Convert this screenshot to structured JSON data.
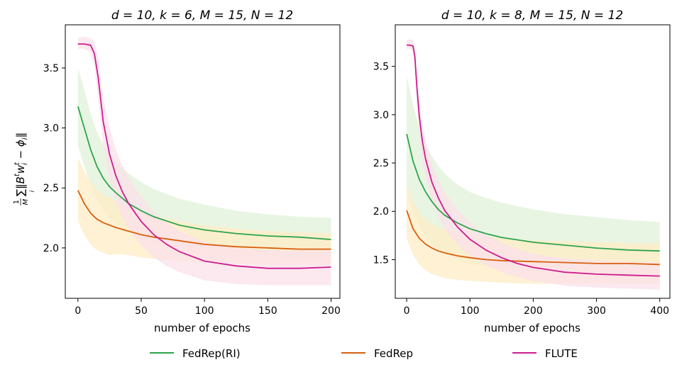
{
  "figure": {
    "ylabel_main": "∑‖B",
    "ylabel_frac_num": "1",
    "ylabel_frac_den": "M",
    "ylabel_sub_i": "i",
    "ylabel_sup_t": "t",
    "ylabel_w": "w",
    "ylabel_tail": " − ϕ",
    "ylabel_close": "‖"
  },
  "legend": {
    "placement": "bottom-center",
    "entries": [
      {
        "label": "FedRep(RI)",
        "color": "#2ca44c"
      },
      {
        "label": "FedRep",
        "color": "#d95f0e"
      },
      {
        "label": "FLUTE",
        "color": "#cc1d8f"
      }
    ]
  },
  "chart_data": [
    {
      "type": "line",
      "title": "d = 10, k = 6, M = 15, N = 12",
      "xlabel": "number of epochs",
      "ylabel": "(1/M) Σ_i ‖B^t w_i^t − ϕ_i‖",
      "xlim": [
        -10,
        207
      ],
      "ylim": [
        1.58,
        3.86
      ],
      "xticks": [
        0,
        50,
        100,
        150,
        200
      ],
      "yticks": [
        2.0,
        2.5,
        3.0,
        3.5
      ],
      "ytick_labels": [
        "2.0",
        "2.5",
        "3.0",
        "3.5"
      ],
      "series": [
        {
          "name": "FedRep(RI)",
          "color": "#2ca44c",
          "band": "#e2f2d9",
          "x": [
            0,
            5,
            10,
            15,
            20,
            25,
            30,
            40,
            50,
            60,
            80,
            100,
            125,
            150,
            175,
            200
          ],
          "y": [
            3.18,
            3.0,
            2.82,
            2.68,
            2.58,
            2.51,
            2.46,
            2.37,
            2.31,
            2.26,
            2.19,
            2.15,
            2.12,
            2.1,
            2.09,
            2.07
          ],
          "lower": [
            2.85,
            2.68,
            2.52,
            2.4,
            2.31,
            2.25,
            2.2,
            2.13,
            2.08,
            2.04,
            1.98,
            1.95,
            1.93,
            1.92,
            1.91,
            1.9
          ],
          "upper": [
            3.5,
            3.32,
            3.12,
            2.97,
            2.86,
            2.78,
            2.72,
            2.62,
            2.55,
            2.49,
            2.41,
            2.36,
            2.31,
            2.28,
            2.26,
            2.25
          ]
        },
        {
          "name": "FedRep",
          "color": "#d95f0e",
          "band": "#fdecc6",
          "x": [
            0,
            5,
            10,
            15,
            20,
            25,
            30,
            40,
            50,
            60,
            80,
            100,
            125,
            150,
            175,
            200
          ],
          "y": [
            2.48,
            2.37,
            2.29,
            2.24,
            2.21,
            2.19,
            2.17,
            2.14,
            2.11,
            2.09,
            2.06,
            2.03,
            2.01,
            2.0,
            1.99,
            1.99
          ],
          "lower": [
            2.22,
            2.11,
            2.03,
            1.98,
            1.96,
            1.94,
            1.95,
            1.94,
            1.92,
            1.91,
            1.89,
            1.88,
            1.87,
            1.86,
            1.86,
            1.86
          ],
          "upper": [
            2.75,
            2.64,
            2.55,
            2.49,
            2.45,
            2.42,
            2.39,
            2.34,
            2.3,
            2.27,
            2.22,
            2.19,
            2.16,
            2.14,
            2.13,
            2.12
          ]
        },
        {
          "name": "FLUTE",
          "color": "#cc1d8f",
          "band": "#fbe0ea",
          "x": [
            0,
            5,
            10,
            13,
            16,
            20,
            25,
            30,
            35,
            40,
            50,
            60,
            70,
            80,
            100,
            125,
            150,
            175,
            200
          ],
          "y": [
            3.7,
            3.7,
            3.69,
            3.62,
            3.42,
            3.05,
            2.78,
            2.6,
            2.47,
            2.37,
            2.22,
            2.11,
            2.03,
            1.97,
            1.89,
            1.85,
            1.83,
            1.83,
            1.84
          ],
          "lower": [
            3.66,
            3.66,
            3.63,
            3.52,
            3.25,
            2.85,
            2.56,
            2.38,
            2.26,
            2.16,
            2.02,
            1.92,
            1.85,
            1.8,
            1.73,
            1.7,
            1.69,
            1.69,
            1.69
          ],
          "upper": [
            3.75,
            3.76,
            3.75,
            3.72,
            3.58,
            3.25,
            3.0,
            2.82,
            2.69,
            2.59,
            2.43,
            2.3,
            2.21,
            2.14,
            2.05,
            2.0,
            1.98,
            1.98,
            1.98
          ]
        }
      ]
    },
    {
      "type": "line",
      "title": "d = 10, k = 8, M = 15, N = 12",
      "xlabel": "number of epochs",
      "ylabel": "",
      "xlim": [
        -18,
        416
      ],
      "ylim": [
        1.1,
        3.93
      ],
      "xticks": [
        0,
        100,
        200,
        300,
        400
      ],
      "yticks": [
        1.5,
        2.0,
        2.5,
        3.0,
        3.5
      ],
      "ytick_labels": [
        "1.5",
        "2.0",
        "2.5",
        "3.0",
        "3.5"
      ],
      "series": [
        {
          "name": "FedRep(RI)",
          "color": "#2ca44c",
          "band": "#e2f2d9",
          "x": [
            0,
            10,
            20,
            30,
            40,
            50,
            60,
            80,
            100,
            125,
            150,
            200,
            250,
            300,
            350,
            400
          ],
          "y": [
            2.8,
            2.52,
            2.33,
            2.2,
            2.1,
            2.02,
            1.96,
            1.88,
            1.82,
            1.77,
            1.73,
            1.68,
            1.65,
            1.62,
            1.6,
            1.59
          ],
          "lower": [
            2.2,
            1.98,
            1.84,
            1.74,
            1.66,
            1.6,
            1.56,
            1.5,
            1.46,
            1.43,
            1.41,
            1.38,
            1.36,
            1.34,
            1.33,
            1.32
          ],
          "upper": [
            3.4,
            3.1,
            2.87,
            2.7,
            2.57,
            2.47,
            2.39,
            2.28,
            2.2,
            2.14,
            2.09,
            2.02,
            1.97,
            1.94,
            1.91,
            1.89
          ]
        },
        {
          "name": "FedRep",
          "color": "#d95f0e",
          "band": "#fdecc6",
          "x": [
            0,
            10,
            20,
            30,
            40,
            50,
            60,
            80,
            100,
            125,
            150,
            200,
            250,
            300,
            350,
            400
          ],
          "y": [
            2.01,
            1.82,
            1.72,
            1.66,
            1.62,
            1.59,
            1.57,
            1.54,
            1.52,
            1.5,
            1.49,
            1.48,
            1.47,
            1.46,
            1.46,
            1.45
          ],
          "lower": [
            1.72,
            1.55,
            1.45,
            1.39,
            1.35,
            1.33,
            1.31,
            1.29,
            1.28,
            1.27,
            1.26,
            1.25,
            1.25,
            1.25,
            1.25,
            1.25
          ],
          "upper": [
            2.3,
            2.1,
            1.99,
            1.92,
            1.87,
            1.84,
            1.81,
            1.78,
            1.76,
            1.74,
            1.72,
            1.7,
            1.69,
            1.68,
            1.67,
            1.67
          ]
        },
        {
          "name": "FLUTE",
          "color": "#cc1d8f",
          "band": "#fbe0ea",
          "x": [
            0,
            5,
            10,
            13,
            16,
            20,
            25,
            30,
            40,
            50,
            60,
            80,
            100,
            125,
            150,
            175,
            200,
            250,
            300,
            350,
            400
          ],
          "y": [
            3.72,
            3.72,
            3.71,
            3.6,
            3.3,
            2.98,
            2.72,
            2.54,
            2.3,
            2.14,
            2.01,
            1.84,
            1.71,
            1.6,
            1.52,
            1.46,
            1.42,
            1.37,
            1.35,
            1.34,
            1.33
          ],
          "lower": [
            3.68,
            3.68,
            3.66,
            3.5,
            3.15,
            2.8,
            2.53,
            2.35,
            2.1,
            1.94,
            1.82,
            1.66,
            1.54,
            1.44,
            1.37,
            1.32,
            1.28,
            1.23,
            1.21,
            1.2,
            1.19
          ],
          "upper": [
            3.77,
            3.78,
            3.77,
            3.7,
            3.45,
            3.15,
            2.9,
            2.72,
            2.49,
            2.33,
            2.2,
            2.02,
            1.88,
            1.76,
            1.67,
            1.61,
            1.56,
            1.51,
            1.49,
            1.48,
            1.47
          ]
        }
      ]
    }
  ]
}
